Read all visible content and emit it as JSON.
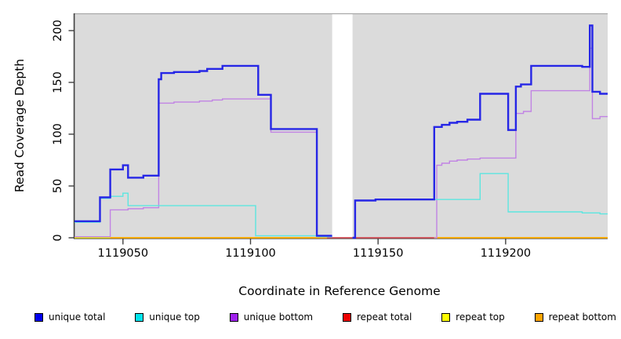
{
  "figure": {
    "plot_bg_color": "#DBDBDB",
    "gap_color": "#FFFFFF",
    "axis_color": "#404040",
    "top_border_color": "#A9A9A9"
  },
  "chart_data": {
    "type": "line",
    "style": "step-after coverage plot",
    "title": "",
    "xlabel": "Coordinate in Reference Genome",
    "ylabel": "Read Coverage Depth",
    "xlim": [
      1119031,
      1119240
    ],
    "ylim": [
      0,
      210
    ],
    "xticks": [
      1119050,
      1119100,
      1119150,
      1119200
    ],
    "yticks": [
      0,
      50,
      100,
      150,
      200
    ],
    "grid": false,
    "legend_position": "bottom",
    "gap": {
      "from": 1119132,
      "to": 1119140
    },
    "series": [
      {
        "name": "unique total",
        "legend_color": "#0000EE",
        "line_color": "#2626E6",
        "line_width": 2.4,
        "segments": [
          [
            [
              1119031,
              16
            ],
            [
              1119041,
              39
            ],
            [
              1119045,
              66
            ],
            [
              1119050,
              70
            ],
            [
              1119052,
              58
            ],
            [
              1119058,
              60
            ],
            [
              1119064,
              153
            ],
            [
              1119065,
              159
            ],
            [
              1119070,
              160
            ],
            [
              1119080,
              161
            ],
            [
              1119083,
              163
            ],
            [
              1119089,
              166
            ],
            [
              1119103,
              138
            ],
            [
              1119108,
              105
            ],
            [
              1119126,
              2
            ],
            [
              1119132,
              2
            ]
          ],
          [
            [
              1119140,
              0
            ],
            [
              1119141,
              36
            ],
            [
              1119149,
              37
            ],
            [
              1119172,
              107
            ],
            [
              1119175,
              109
            ],
            [
              1119178,
              111
            ],
            [
              1119181,
              112
            ],
            [
              1119185,
              114
            ],
            [
              1119190,
              139
            ],
            [
              1119201,
              104
            ],
            [
              1119204,
              146
            ],
            [
              1119206,
              148
            ],
            [
              1119210,
              166
            ],
            [
              1119230,
              165
            ],
            [
              1119233,
              205
            ],
            [
              1119234,
              141
            ],
            [
              1119237,
              139
            ],
            [
              1119240,
              139
            ]
          ]
        ]
      },
      {
        "name": "unique top",
        "legend_color": "#00E5EE",
        "line_color": "#5CE6E0",
        "line_width": 1.4,
        "segments": [
          [
            [
              1119031,
              15
            ],
            [
              1119041,
              38
            ],
            [
              1119045,
              40
            ],
            [
              1119050,
              43
            ],
            [
              1119052,
              31
            ],
            [
              1119102,
              2
            ],
            [
              1119126,
              1
            ],
            [
              1119132,
              1
            ]
          ],
          [
            [
              1119140,
              0
            ],
            [
              1119141,
              36
            ],
            [
              1119149,
              37
            ],
            [
              1119190,
              62
            ],
            [
              1119201,
              25
            ],
            [
              1119230,
              24
            ],
            [
              1119237,
              23
            ],
            [
              1119240,
              23
            ]
          ]
        ]
      },
      {
        "name": "unique bottom",
        "legend_color": "#A021EF",
        "line_color": "#C183E4",
        "line_width": 1.4,
        "segments": [
          [
            [
              1119031,
              1
            ],
            [
              1119045,
              27
            ],
            [
              1119052,
              28
            ],
            [
              1119058,
              29
            ],
            [
              1119064,
              130
            ],
            [
              1119070,
              131
            ],
            [
              1119080,
              132
            ],
            [
              1119085,
              133
            ],
            [
              1119089,
              134
            ],
            [
              1119108,
              102
            ],
            [
              1119126,
              1
            ],
            [
              1119132,
              1
            ]
          ],
          [
            [
              1119172,
              0
            ],
            [
              1119173,
              70
            ],
            [
              1119175,
              72
            ],
            [
              1119178,
              74
            ],
            [
              1119181,
              75
            ],
            [
              1119185,
              76
            ],
            [
              1119190,
              77
            ],
            [
              1119204,
              120
            ],
            [
              1119207,
              122
            ],
            [
              1119210,
              142
            ],
            [
              1119233,
              183
            ],
            [
              1119234,
              115
            ],
            [
              1119237,
              117
            ],
            [
              1119240,
              117
            ]
          ]
        ]
      },
      {
        "name": "repeat total",
        "legend_color": "#EE0000",
        "line_color": "#CC3366",
        "line_width": 1.4,
        "segments": [
          [
            [
              1119126,
              0
            ],
            [
              1119172,
              0
            ]
          ]
        ]
      },
      {
        "name": "repeat top",
        "legend_color": "#FFFF00",
        "line_color": "#F2F200",
        "line_width": 1.4,
        "segments": [
          [
            [
              1119031,
              0
            ],
            [
              1119240,
              0
            ]
          ]
        ]
      },
      {
        "name": "repeat bottom",
        "legend_color": "#FFA500",
        "line_color": "#FFA500",
        "line_width": 1.8,
        "segments": [
          [
            [
              1119045,
              0
            ],
            [
              1119130,
              0
            ]
          ],
          [
            [
              1119172,
              0
            ],
            [
              1119240,
              0
            ]
          ]
        ]
      }
    ],
    "draw_order": [
      4,
      3,
      5,
      2,
      1,
      0
    ]
  }
}
